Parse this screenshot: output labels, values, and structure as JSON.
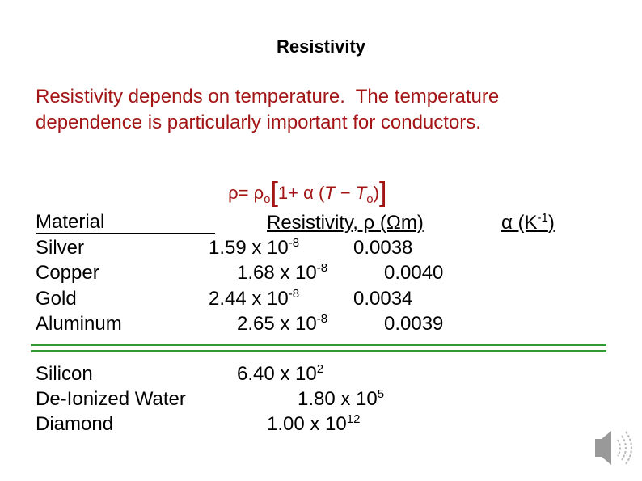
{
  "title": "Resistivity",
  "intro": [
    "Resistivity depends on temperature.  The temperature",
    "dependence is particularly important for conductors."
  ],
  "equation": [
    "ρ= ρ",
    "o",
    "[",
    "1+ α (",
    "T",
    " − ",
    "T",
    "o",
    ")",
    "]"
  ],
  "table": {
    "header": {
      "material": "Material",
      "resistivity": "Resistivity, ρ (Ωm)",
      "alpha": "α (K",
      "alpha_exp": "-1",
      "alpha_end": ")"
    },
    "rows": [
      {
        "material": "Silver",
        "resistivity": "1.59 x 10",
        "exp": "-8",
        "alpha": "0.0038"
      },
      {
        "material": "Copper",
        "resistivity": "1.68 x 10",
        "exp": "-8",
        "alpha": "0.0040"
      },
      {
        "material": "Gold",
        "resistivity": "2.44 x 10",
        "exp": "-8",
        "alpha": "0.0034"
      },
      {
        "material": "Aluminum",
        "resistivity": "2.65 x 10",
        "exp": "-8",
        "alpha": "0.0039"
      }
    ],
    "others": [
      {
        "material": "Silicon",
        "resistivity": "6.40 x 10",
        "exp": "2"
      },
      {
        "material": "De-Ionized Water",
        "resistivity": "1.80 x 10",
        "exp": "5"
      },
      {
        "material": "Diamond",
        "resistivity": "1.00 x 10",
        "exp": "12"
      }
    ]
  }
}
